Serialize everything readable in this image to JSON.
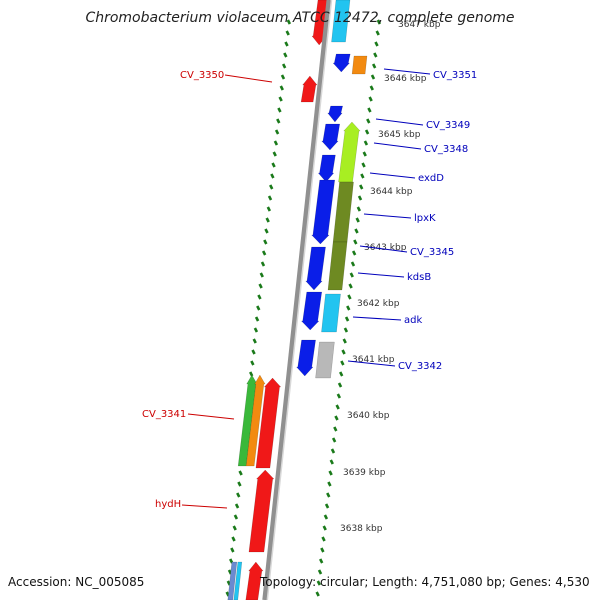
{
  "title": "Chromobacterium violaceum ATCC 12472, complete genome",
  "accession": "Accession: NC_005085",
  "summary": "Topology: circular; Length: 4,751,080 bp; Genes: 4,530",
  "colors": {
    "forward_label": "#cc0000",
    "reverse_label": "#0000bb",
    "tick": "#1a7a1a",
    "backbone": "#909090",
    "blue": "#0a1ee8",
    "red": "#f01818",
    "cyan": "#22c4f0",
    "lime": "#a8ee22",
    "olive": "#6e8a22",
    "orange": "#f28a10",
    "green": "#3ab83a",
    "grey": "#b8b8b8"
  },
  "kbp_labels": [
    "3647 kbp",
    "3646 kbp",
    "3645 kbp",
    "3644 kbp",
    "3643 kbp",
    "3642 kbp",
    "3641 kbp",
    "3640 kbp",
    "3639 kbp",
    "3638 kbp"
  ],
  "gene_labels_right": [
    "CV_3351",
    "CV_3349",
    "CV_3348",
    "exdD",
    "lpxK",
    "CV_3345",
    "kdsB",
    "adk",
    "CV_3342"
  ],
  "gene_labels_left": [
    "CV_3350",
    "CV_3341",
    "hydH"
  ]
}
